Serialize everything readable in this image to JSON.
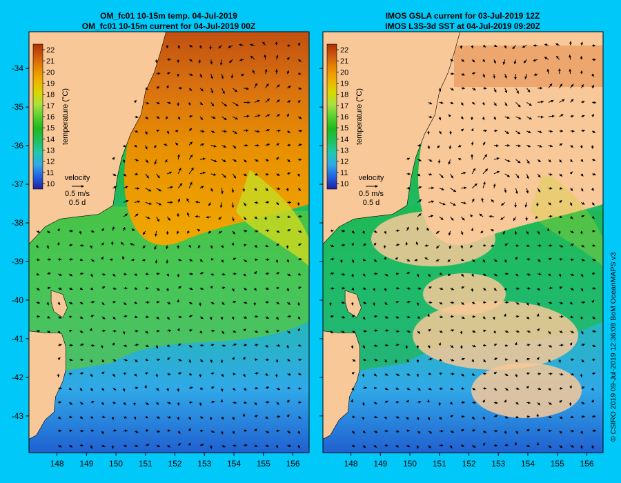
{
  "panels": [
    {
      "id": "left",
      "title_line1": "OM_fc01 10-15m temp. 04-Jul-2019",
      "title_line2": "OM_fc01 10-15m current for 04-Jul-2019 00Z"
    },
    {
      "id": "right",
      "title_line1": "IMOS GSLA current for 03-Jul-2019 12Z",
      "title_line2": "IMOS L3S-3d SST at 04-Jul-2019 09:20Z"
    }
  ],
  "axes": {
    "lon_ticks": [
      "148",
      "149",
      "150",
      "151",
      "152",
      "153",
      "154",
      "155",
      "156"
    ],
    "lat_ticks": [
      "-34",
      "-35",
      "-36",
      "-37",
      "-38",
      "-39",
      "-40",
      "-41",
      "-42",
      "-43"
    ],
    "lon_range": [
      147.05,
      156.55
    ],
    "lat_range": [
      -43.95,
      -33.05
    ]
  },
  "colorbar": {
    "label": "temperature (°C)",
    "ticks": [
      "22",
      "21",
      "20",
      "19",
      "18",
      "17",
      "16",
      "15",
      "14",
      "13",
      "12",
      "11",
      "10"
    ],
    "colors": [
      "#b03000",
      "#d05a10",
      "#e88a00",
      "#f0b000",
      "#d8d800",
      "#a8e040",
      "#58d030",
      "#20b820",
      "#20c060",
      "#20c8b0",
      "#30a8e8",
      "#2060e0",
      "#2020a0"
    ]
  },
  "legend": {
    "label": "velocity",
    "speed": "0.5 m/s",
    "time": "0.5 d"
  },
  "credit": "© CSIRO 2019   09-Jul-2019 12:36:08 BoM OceanMAPS v3",
  "colors": {
    "land": "#f8c898",
    "background": "#00c8f8"
  }
}
